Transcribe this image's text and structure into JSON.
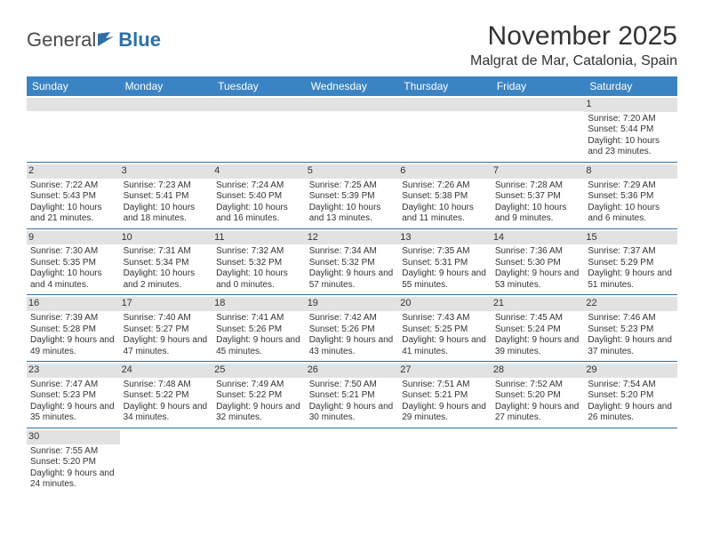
{
  "logo": {
    "general": "General",
    "blue": "Blue"
  },
  "title": "November 2025",
  "location": "Malgrat de Mar, Catalonia, Spain",
  "colors": {
    "header_bg": "#3b84c4",
    "header_text": "#ffffff",
    "daynum_bg": "#e2e2e2",
    "cell_border": "#2f6fa8",
    "text": "#333333",
    "logo_gray": "#4a4a4a",
    "logo_blue": "#2f6fa8"
  },
  "weekdays": [
    "Sunday",
    "Monday",
    "Tuesday",
    "Wednesday",
    "Thursday",
    "Friday",
    "Saturday"
  ],
  "weeks": [
    [
      null,
      null,
      null,
      null,
      null,
      null,
      {
        "d": "1",
        "sr": "Sunrise: 7:20 AM",
        "ss": "Sunset: 5:44 PM",
        "dl": "Daylight: 10 hours and 23 minutes."
      }
    ],
    [
      {
        "d": "2",
        "sr": "Sunrise: 7:22 AM",
        "ss": "Sunset: 5:43 PM",
        "dl": "Daylight: 10 hours and 21 minutes."
      },
      {
        "d": "3",
        "sr": "Sunrise: 7:23 AM",
        "ss": "Sunset: 5:41 PM",
        "dl": "Daylight: 10 hours and 18 minutes."
      },
      {
        "d": "4",
        "sr": "Sunrise: 7:24 AM",
        "ss": "Sunset: 5:40 PM",
        "dl": "Daylight: 10 hours and 16 minutes."
      },
      {
        "d": "5",
        "sr": "Sunrise: 7:25 AM",
        "ss": "Sunset: 5:39 PM",
        "dl": "Daylight: 10 hours and 13 minutes."
      },
      {
        "d": "6",
        "sr": "Sunrise: 7:26 AM",
        "ss": "Sunset: 5:38 PM",
        "dl": "Daylight: 10 hours and 11 minutes."
      },
      {
        "d": "7",
        "sr": "Sunrise: 7:28 AM",
        "ss": "Sunset: 5:37 PM",
        "dl": "Daylight: 10 hours and 9 minutes."
      },
      {
        "d": "8",
        "sr": "Sunrise: 7:29 AM",
        "ss": "Sunset: 5:36 PM",
        "dl": "Daylight: 10 hours and 6 minutes."
      }
    ],
    [
      {
        "d": "9",
        "sr": "Sunrise: 7:30 AM",
        "ss": "Sunset: 5:35 PM",
        "dl": "Daylight: 10 hours and 4 minutes."
      },
      {
        "d": "10",
        "sr": "Sunrise: 7:31 AM",
        "ss": "Sunset: 5:34 PM",
        "dl": "Daylight: 10 hours and 2 minutes."
      },
      {
        "d": "11",
        "sr": "Sunrise: 7:32 AM",
        "ss": "Sunset: 5:32 PM",
        "dl": "Daylight: 10 hours and 0 minutes."
      },
      {
        "d": "12",
        "sr": "Sunrise: 7:34 AM",
        "ss": "Sunset: 5:32 PM",
        "dl": "Daylight: 9 hours and 57 minutes."
      },
      {
        "d": "13",
        "sr": "Sunrise: 7:35 AM",
        "ss": "Sunset: 5:31 PM",
        "dl": "Daylight: 9 hours and 55 minutes."
      },
      {
        "d": "14",
        "sr": "Sunrise: 7:36 AM",
        "ss": "Sunset: 5:30 PM",
        "dl": "Daylight: 9 hours and 53 minutes."
      },
      {
        "d": "15",
        "sr": "Sunrise: 7:37 AM",
        "ss": "Sunset: 5:29 PM",
        "dl": "Daylight: 9 hours and 51 minutes."
      }
    ],
    [
      {
        "d": "16",
        "sr": "Sunrise: 7:39 AM",
        "ss": "Sunset: 5:28 PM",
        "dl": "Daylight: 9 hours and 49 minutes."
      },
      {
        "d": "17",
        "sr": "Sunrise: 7:40 AM",
        "ss": "Sunset: 5:27 PM",
        "dl": "Daylight: 9 hours and 47 minutes."
      },
      {
        "d": "18",
        "sr": "Sunrise: 7:41 AM",
        "ss": "Sunset: 5:26 PM",
        "dl": "Daylight: 9 hours and 45 minutes."
      },
      {
        "d": "19",
        "sr": "Sunrise: 7:42 AM",
        "ss": "Sunset: 5:26 PM",
        "dl": "Daylight: 9 hours and 43 minutes."
      },
      {
        "d": "20",
        "sr": "Sunrise: 7:43 AM",
        "ss": "Sunset: 5:25 PM",
        "dl": "Daylight: 9 hours and 41 minutes."
      },
      {
        "d": "21",
        "sr": "Sunrise: 7:45 AM",
        "ss": "Sunset: 5:24 PM",
        "dl": "Daylight: 9 hours and 39 minutes."
      },
      {
        "d": "22",
        "sr": "Sunrise: 7:46 AM",
        "ss": "Sunset: 5:23 PM",
        "dl": "Daylight: 9 hours and 37 minutes."
      }
    ],
    [
      {
        "d": "23",
        "sr": "Sunrise: 7:47 AM",
        "ss": "Sunset: 5:23 PM",
        "dl": "Daylight: 9 hours and 35 minutes."
      },
      {
        "d": "24",
        "sr": "Sunrise: 7:48 AM",
        "ss": "Sunset: 5:22 PM",
        "dl": "Daylight: 9 hours and 34 minutes."
      },
      {
        "d": "25",
        "sr": "Sunrise: 7:49 AM",
        "ss": "Sunset: 5:22 PM",
        "dl": "Daylight: 9 hours and 32 minutes."
      },
      {
        "d": "26",
        "sr": "Sunrise: 7:50 AM",
        "ss": "Sunset: 5:21 PM",
        "dl": "Daylight: 9 hours and 30 minutes."
      },
      {
        "d": "27",
        "sr": "Sunrise: 7:51 AM",
        "ss": "Sunset: 5:21 PM",
        "dl": "Daylight: 9 hours and 29 minutes."
      },
      {
        "d": "28",
        "sr": "Sunrise: 7:52 AM",
        "ss": "Sunset: 5:20 PM",
        "dl": "Daylight: 9 hours and 27 minutes."
      },
      {
        "d": "29",
        "sr": "Sunrise: 7:54 AM",
        "ss": "Sunset: 5:20 PM",
        "dl": "Daylight: 9 hours and 26 minutes."
      }
    ],
    [
      {
        "d": "30",
        "sr": "Sunrise: 7:55 AM",
        "ss": "Sunset: 5:20 PM",
        "dl": "Daylight: 9 hours and 24 minutes."
      },
      null,
      null,
      null,
      null,
      null,
      null
    ]
  ]
}
